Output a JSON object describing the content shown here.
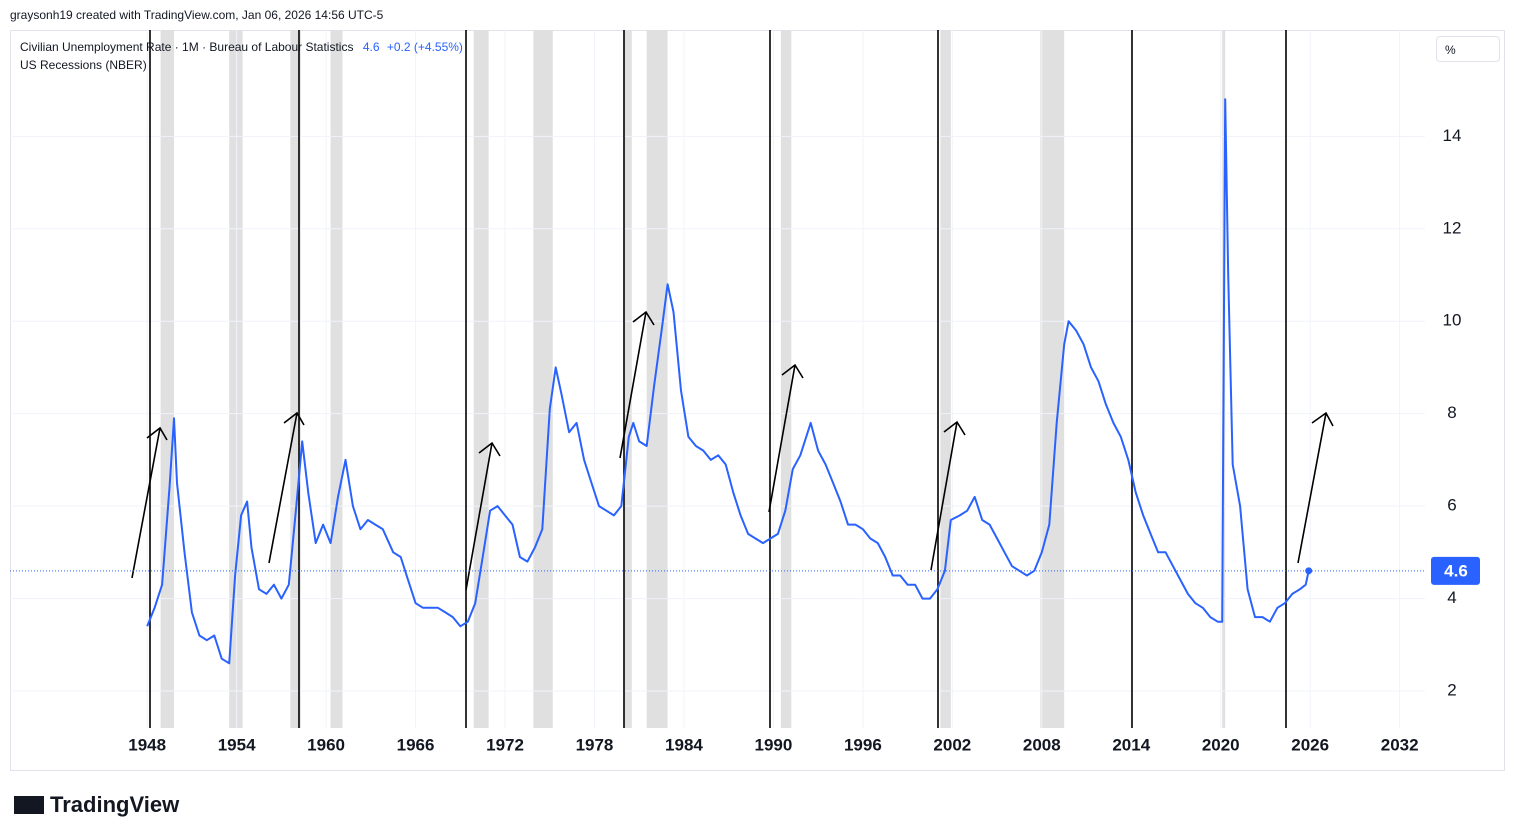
{
  "header": {
    "credit": "graysonh19 created with TradingView.com, Jan 06, 2026 14:56 UTC-5"
  },
  "footer": {
    "brand": "TradingView"
  },
  "chart_data": {
    "type": "line",
    "series": [
      {
        "name": "Civilian Unemployment Rate · 1M · Bureau of Labour Statistics",
        "color": "#2962ff",
        "x": [
          1948.0,
          1948.5,
          1949.0,
          1949.5,
          1949.8,
          1950.0,
          1950.5,
          1951.0,
          1951.5,
          1952.0,
          1952.5,
          1953.0,
          1953.5,
          1953.9,
          1954.3,
          1954.7,
          1955.0,
          1955.5,
          1956.0,
          1956.5,
          1957.0,
          1957.5,
          1958.0,
          1958.4,
          1958.8,
          1959.3,
          1959.8,
          1960.3,
          1960.8,
          1961.3,
          1961.8,
          1962.3,
          1962.8,
          1963.3,
          1963.8,
          1964.5,
          1965.0,
          1965.5,
          1966.0,
          1966.5,
          1967.0,
          1967.5,
          1968.0,
          1968.5,
          1969.0,
          1969.5,
          1970.0,
          1970.5,
          1971.0,
          1971.5,
          1972.0,
          1972.5,
          1973.0,
          1973.5,
          1974.0,
          1974.5,
          1975.0,
          1975.4,
          1975.8,
          1976.3,
          1976.8,
          1977.3,
          1977.8,
          1978.3,
          1978.8,
          1979.3,
          1979.8,
          1980.3,
          1980.6,
          1981.0,
          1981.5,
          1982.0,
          1982.5,
          1982.9,
          1983.3,
          1983.8,
          1984.3,
          1984.8,
          1985.3,
          1985.8,
          1986.3,
          1986.8,
          1987.3,
          1987.8,
          1988.3,
          1988.8,
          1989.3,
          1989.8,
          1990.3,
          1990.8,
          1991.3,
          1991.8,
          1992.5,
          1993.0,
          1993.5,
          1994.0,
          1994.5,
          1995.0,
          1995.5,
          1996.0,
          1996.5,
          1997.0,
          1997.5,
          1998.0,
          1998.5,
          1999.0,
          1999.5,
          2000.0,
          2000.5,
          2001.0,
          2001.5,
          2001.9,
          2002.5,
          2003.0,
          2003.5,
          2004.0,
          2004.5,
          2005.0,
          2005.5,
          2006.0,
          2006.5,
          2007.0,
          2007.5,
          2008.0,
          2008.5,
          2009.0,
          2009.5,
          2009.8,
          2010.3,
          2010.8,
          2011.3,
          2011.8,
          2012.3,
          2012.8,
          2013.3,
          2013.8,
          2014.3,
          2014.8,
          2015.3,
          2015.8,
          2016.3,
          2016.8,
          2017.3,
          2017.8,
          2018.3,
          2018.8,
          2019.3,
          2019.8,
          2020.1,
          2020.3,
          2020.5,
          2020.8,
          2021.3,
          2021.8,
          2022.3,
          2022.8,
          2023.3,
          2023.8,
          2024.3,
          2024.8,
          2025.3,
          2025.7,
          2025.9
        ],
        "values": [
          3.4,
          3.8,
          4.3,
          6.4,
          7.9,
          6.5,
          5.0,
          3.7,
          3.2,
          3.1,
          3.2,
          2.7,
          2.6,
          4.5,
          5.8,
          6.1,
          5.1,
          4.2,
          4.1,
          4.3,
          4.0,
          4.3,
          6.0,
          7.4,
          6.3,
          5.2,
          5.6,
          5.2,
          6.2,
          7.0,
          6.0,
          5.5,
          5.7,
          5.6,
          5.5,
          5.0,
          4.9,
          4.4,
          3.9,
          3.8,
          3.8,
          3.8,
          3.7,
          3.6,
          3.4,
          3.5,
          3.9,
          4.9,
          5.9,
          6.0,
          5.8,
          5.6,
          4.9,
          4.8,
          5.1,
          5.5,
          8.1,
          9.0,
          8.4,
          7.6,
          7.8,
          7.0,
          6.5,
          6.0,
          5.9,
          5.8,
          6.0,
          7.5,
          7.8,
          7.4,
          7.3,
          8.6,
          9.8,
          10.8,
          10.2,
          8.5,
          7.5,
          7.3,
          7.2,
          7.0,
          7.1,
          6.9,
          6.3,
          5.8,
          5.4,
          5.3,
          5.2,
          5.3,
          5.4,
          5.9,
          6.8,
          7.1,
          7.8,
          7.2,
          6.9,
          6.5,
          6.1,
          5.6,
          5.6,
          5.5,
          5.3,
          5.2,
          4.9,
          4.5,
          4.5,
          4.3,
          4.3,
          4.0,
          4.0,
          4.2,
          4.6,
          5.7,
          5.8,
          5.9,
          6.2,
          5.7,
          5.6,
          5.3,
          5.0,
          4.7,
          4.6,
          4.5,
          4.6,
          5.0,
          5.6,
          7.8,
          9.5,
          10.0,
          9.8,
          9.5,
          9.0,
          8.7,
          8.2,
          7.8,
          7.5,
          7.0,
          6.3,
          5.8,
          5.4,
          5.0,
          5.0,
          4.7,
          4.4,
          4.1,
          3.9,
          3.8,
          3.6,
          3.5,
          3.5,
          14.8,
          11.0,
          6.9,
          6.0,
          4.2,
          3.6,
          3.6,
          3.5,
          3.8,
          3.9,
          4.1,
          4.2,
          4.3,
          4.6
        ]
      }
    ],
    "last_value": 4.6,
    "change": "+0.2",
    "change_percent": "(+4.55%)",
    "recessions": {
      "name": "US Recessions (NBER)",
      "color": "#e0e0e0",
      "ranges": [
        [
          1948.9,
          1949.8
        ],
        [
          1953.5,
          1954.4
        ],
        [
          1957.6,
          1958.3
        ],
        [
          1960.3,
          1961.1
        ],
        [
          1969.9,
          1970.9
        ],
        [
          1973.9,
          1975.2
        ],
        [
          1980.0,
          1980.5
        ],
        [
          1981.5,
          1982.9
        ],
        [
          1990.5,
          1991.2
        ],
        [
          2001.2,
          2001.9
        ],
        [
          2007.9,
          2009.5
        ],
        [
          2020.1,
          2020.3
        ]
      ]
    },
    "xlim": [
      1938.8,
      2033.7
    ],
    "xticks": [
      1948,
      1954,
      1960,
      1966,
      1972,
      1978,
      1984,
      1990,
      1996,
      2002,
      2008,
      2014,
      2020,
      2026,
      2032
    ],
    "ylim": [
      1.2,
      16.3
    ],
    "yticks": [
      2,
      4,
      6,
      8,
      10,
      12,
      14
    ],
    "scale_button": "%",
    "grid": true
  }
}
